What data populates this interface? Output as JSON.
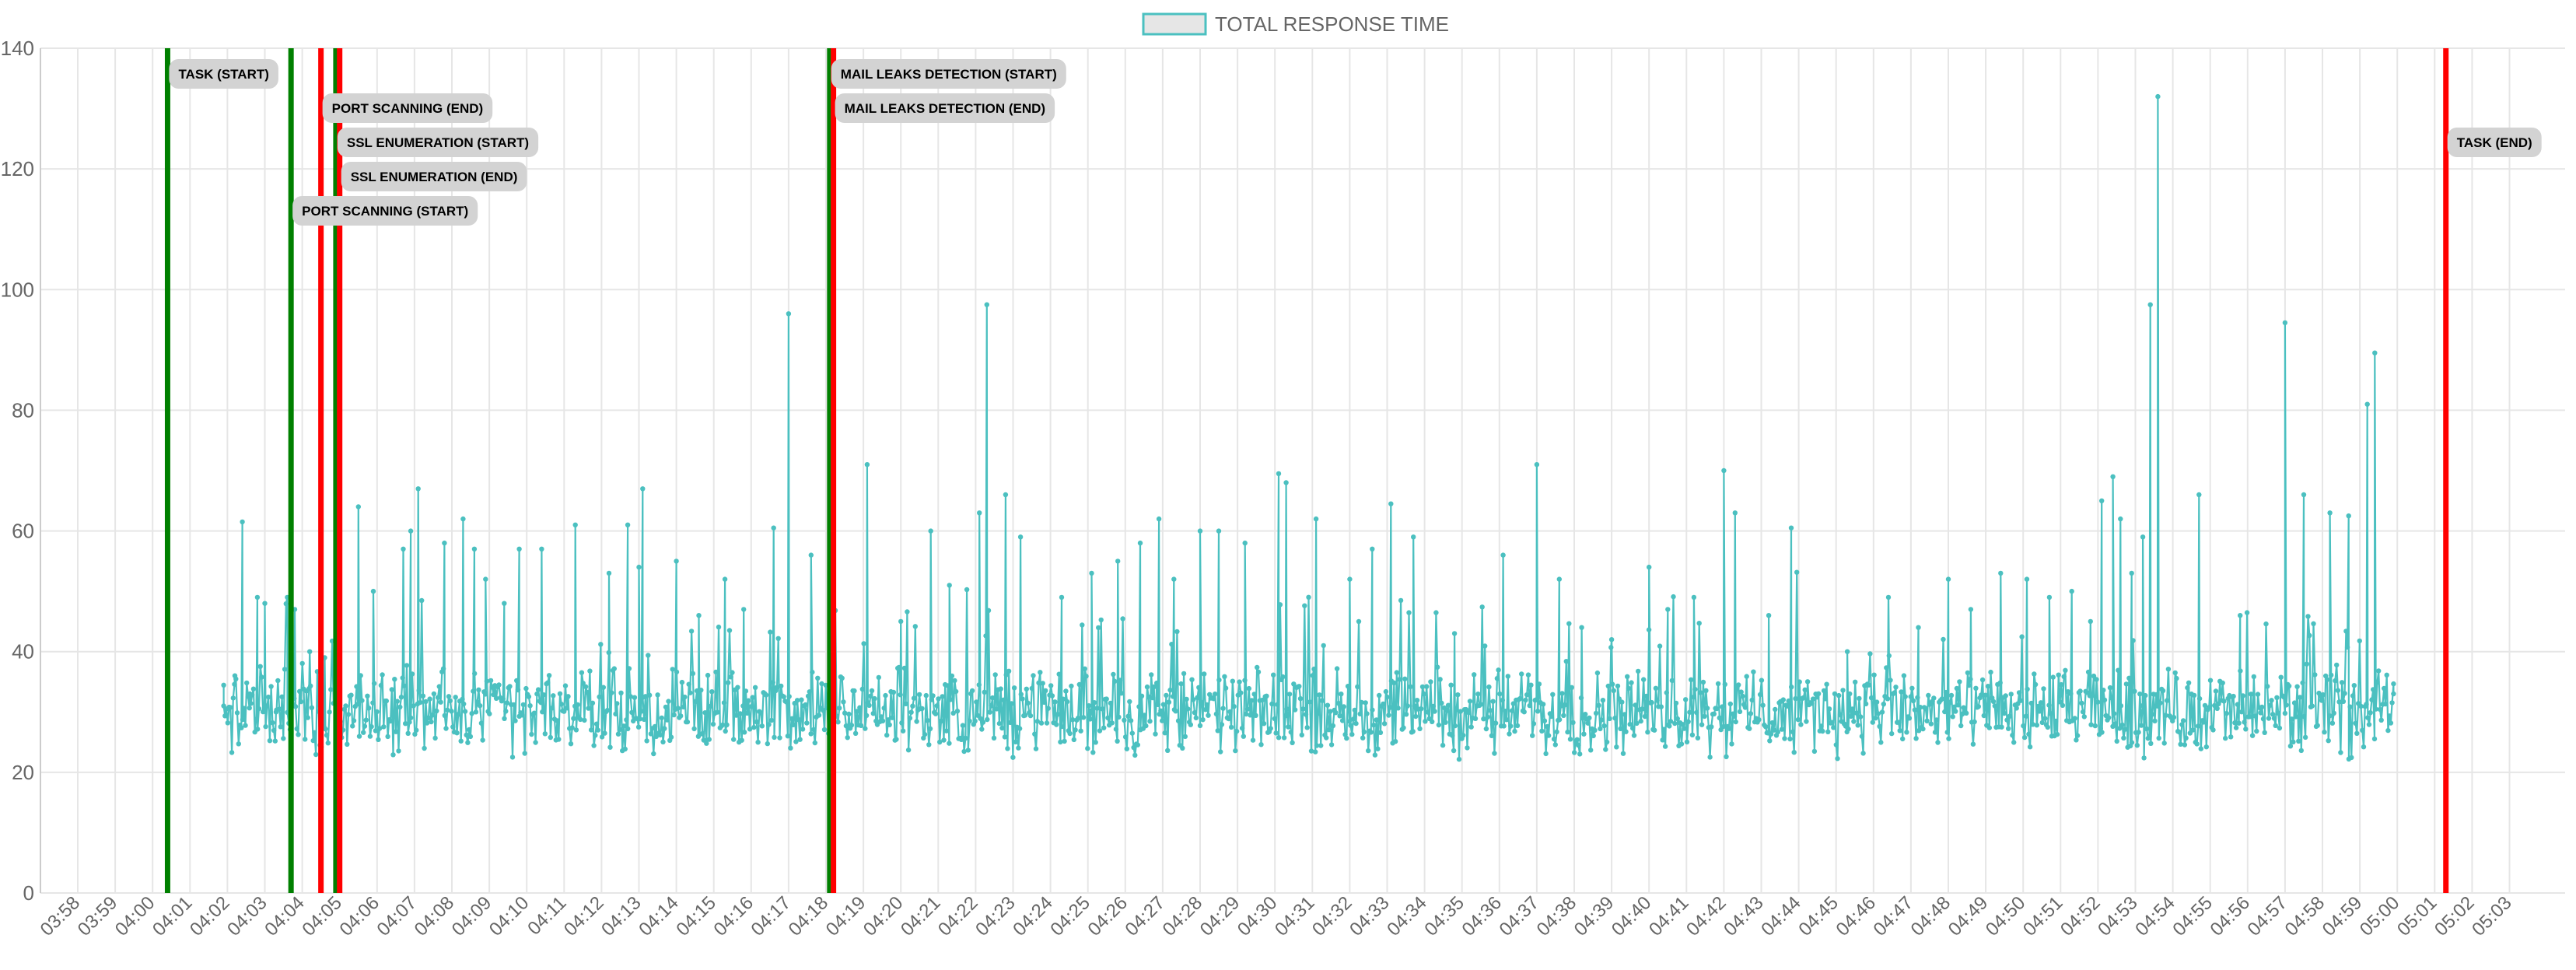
{
  "chart_data": {
    "type": "line",
    "legend": {
      "position": "top-center",
      "label": "TOTAL RESPONSE TIME"
    },
    "colors": {
      "series_line": "#4bc0c0",
      "series_fill": "#e6e6e6",
      "start_marker": "#008000",
      "end_marker": "#ff0000",
      "grid": "#e6e6e6",
      "axis_text": "#666666",
      "annotation_bg": "#d3d3d3"
    },
    "ylim": [
      0,
      140
    ],
    "yticks": [
      0,
      20,
      40,
      60,
      80,
      100,
      120,
      140
    ],
    "grid": true,
    "xticks": [
      "03:58",
      "03:59",
      "04:00",
      "04:01",
      "04:02",
      "04:03",
      "04:04",
      "04:05",
      "04:06",
      "04:07",
      "04:08",
      "04:09",
      "04:10",
      "04:11",
      "04:12",
      "04:13",
      "04:14",
      "04:15",
      "04:16",
      "04:17",
      "04:18",
      "04:19",
      "04:20",
      "04:21",
      "04:22",
      "04:23",
      "04:24",
      "04:25",
      "04:26",
      "04:27",
      "04:28",
      "04:29",
      "04:30",
      "04:31",
      "04:32",
      "04:33",
      "04:34",
      "04:35",
      "04:36",
      "04:37",
      "04:38",
      "04:39",
      "04:40",
      "04:41",
      "04:42",
      "04:43",
      "04:44",
      "04:45",
      "04:46",
      "04:47",
      "04:48",
      "04:49",
      "04:50",
      "04:51",
      "04:52",
      "04:53",
      "04:54",
      "04:55",
      "04:56",
      "04:57",
      "04:58",
      "04:59",
      "05:00",
      "05:01",
      "05:02",
      "05:03"
    ],
    "series": [
      {
        "name": "TOTAL RESPONSE TIME",
        "baseline": 30,
        "jitter": 5,
        "x_range": [
          "04:01.9",
          "04:59.9"
        ],
        "points": [
          {
            "x": "04:01.9",
            "y": 31
          },
          {
            "x": "04:02.2",
            "y": 36
          },
          {
            "x": "04:02.4",
            "y": 61.5
          },
          {
            "x": "04:02.6",
            "y": 33
          },
          {
            "x": "04:02.8",
            "y": 49
          },
          {
            "x": "04:03.0",
            "y": 48
          },
          {
            "x": "04:03.3",
            "y": 30
          },
          {
            "x": "04:03.6",
            "y": 49
          },
          {
            "x": "04:03.8",
            "y": 47
          },
          {
            "x": "04:04.2",
            "y": 40
          },
          {
            "x": "04:04.6",
            "y": 39
          },
          {
            "x": "04:05.0",
            "y": 64
          },
          {
            "x": "04:05.5",
            "y": 64
          },
          {
            "x": "04:05.9",
            "y": 50
          },
          {
            "x": "04:06.7",
            "y": 57
          },
          {
            "x": "04:06.9",
            "y": 60
          },
          {
            "x": "04:07.1",
            "y": 67
          },
          {
            "x": "04:07.8",
            "y": 58
          },
          {
            "x": "04:08.3",
            "y": 62
          },
          {
            "x": "04:08.6",
            "y": 57
          },
          {
            "x": "04:08.9",
            "y": 52
          },
          {
            "x": "04:09.4",
            "y": 48
          },
          {
            "x": "04:09.8",
            "y": 57
          },
          {
            "x": "04:10.4",
            "y": 57
          },
          {
            "x": "04:11.3",
            "y": 61
          },
          {
            "x": "04:12.2",
            "y": 53
          },
          {
            "x": "04:12.7",
            "y": 61
          },
          {
            "x": "04:13.0",
            "y": 54
          },
          {
            "x": "04:13.1",
            "y": 67
          },
          {
            "x": "04:14.0",
            "y": 55
          },
          {
            "x": "04:14.6",
            "y": 46
          },
          {
            "x": "04:15.3",
            "y": 52
          },
          {
            "x": "04:15.8",
            "y": 47
          },
          {
            "x": "04:16.6",
            "y": 60.5
          },
          {
            "x": "04:17.0",
            "y": 96
          },
          {
            "x": "04:17.6",
            "y": 56
          },
          {
            "x": "04:18.2",
            "y": 44
          },
          {
            "x": "04:19.1",
            "y": 71
          },
          {
            "x": "04:20.0",
            "y": 45
          },
          {
            "x": "04:20.8",
            "y": 60
          },
          {
            "x": "04:21.3",
            "y": 51
          },
          {
            "x": "04:22.1",
            "y": 63
          },
          {
            "x": "04:22.3",
            "y": 97.5
          },
          {
            "x": "04:22.8",
            "y": 66
          },
          {
            "x": "04:23.2",
            "y": 59
          },
          {
            "x": "04:24.3",
            "y": 49
          },
          {
            "x": "04:25.1",
            "y": 53
          },
          {
            "x": "04:25.8",
            "y": 55
          },
          {
            "x": "04:26.4",
            "y": 58
          },
          {
            "x": "04:26.9",
            "y": 62
          },
          {
            "x": "04:27.3",
            "y": 52
          },
          {
            "x": "04:28.0",
            "y": 60
          },
          {
            "x": "04:28.5",
            "y": 60
          },
          {
            "x": "04:29.2",
            "y": 58
          },
          {
            "x": "04:30.1",
            "y": 69.5
          },
          {
            "x": "04:30.3",
            "y": 68
          },
          {
            "x": "04:31.1",
            "y": 62
          },
          {
            "x": "04:32.0",
            "y": 52
          },
          {
            "x": "04:32.6",
            "y": 57
          },
          {
            "x": "04:33.1",
            "y": 64.5
          },
          {
            "x": "04:33.7",
            "y": 59
          },
          {
            "x": "04:34.8",
            "y": 43
          },
          {
            "x": "04:36.1",
            "y": 56
          },
          {
            "x": "04:37.0",
            "y": 71
          },
          {
            "x": "04:37.6",
            "y": 52
          },
          {
            "x": "04:38.2",
            "y": 44
          },
          {
            "x": "04:39.0",
            "y": 42
          },
          {
            "x": "04:40.0",
            "y": 54
          },
          {
            "x": "04:40.5",
            "y": 47
          },
          {
            "x": "04:41.2",
            "y": 49
          },
          {
            "x": "04:42.0",
            "y": 70
          },
          {
            "x": "04:42.3",
            "y": 63
          },
          {
            "x": "04:43.2",
            "y": 46
          },
          {
            "x": "04:43.8",
            "y": 60.5
          },
          {
            "x": "04:45.3",
            "y": 40
          },
          {
            "x": "04:46.4",
            "y": 49
          },
          {
            "x": "04:47.2",
            "y": 44
          },
          {
            "x": "04:48.0",
            "y": 52
          },
          {
            "x": "04:48.6",
            "y": 47
          },
          {
            "x": "04:49.4",
            "y": 53
          },
          {
            "x": "04:50.1",
            "y": 52
          },
          {
            "x": "04:50.7",
            "y": 49
          },
          {
            "x": "04:51.3",
            "y": 50
          },
          {
            "x": "04:51.8",
            "y": 45
          },
          {
            "x": "04:52.1",
            "y": 65
          },
          {
            "x": "04:52.4",
            "y": 69
          },
          {
            "x": "04:52.6",
            "y": 62
          },
          {
            "x": "04:52.9",
            "y": 53
          },
          {
            "x": "04:53.2",
            "y": 59
          },
          {
            "x": "04:53.4",
            "y": 97.5
          },
          {
            "x": "04:53.6",
            "y": 132
          },
          {
            "x": "04:54.7",
            "y": 66
          },
          {
            "x": "04:55.8",
            "y": 46
          },
          {
            "x": "04:57.0",
            "y": 94.5
          },
          {
            "x": "04:57.5",
            "y": 66
          },
          {
            "x": "04:58.2",
            "y": 63
          },
          {
            "x": "04:58.7",
            "y": 62.5
          },
          {
            "x": "04:59.2",
            "y": 81
          },
          {
            "x": "04:59.4",
            "y": 89.5
          },
          {
            "x": "04:59.9",
            "y": 33
          }
        ]
      }
    ],
    "events": [
      {
        "label": "TASK (START)",
        "x": "04:00.4",
        "kind": "start"
      },
      {
        "label": "PORT SCANNING (START)",
        "x": "04:03.7",
        "kind": "start"
      },
      {
        "label": "PORT SCANNING (END)",
        "x": "04:04.5",
        "kind": "end"
      },
      {
        "label": "SSL ENUMERATION (START)",
        "x": "04:04.9",
        "kind": "start"
      },
      {
        "label": "SSL ENUMERATION (END)",
        "x": "04:05.0",
        "kind": "end"
      },
      {
        "label": "MAIL LEAKS DETECTION (START)",
        "x": "04:18.1",
        "kind": "start"
      },
      {
        "label": "MAIL LEAKS DETECTION (END)",
        "x": "04:18.2",
        "kind": "end"
      },
      {
        "label": "TASK (END)",
        "x": "05:01.3",
        "kind": "end"
      }
    ]
  }
}
